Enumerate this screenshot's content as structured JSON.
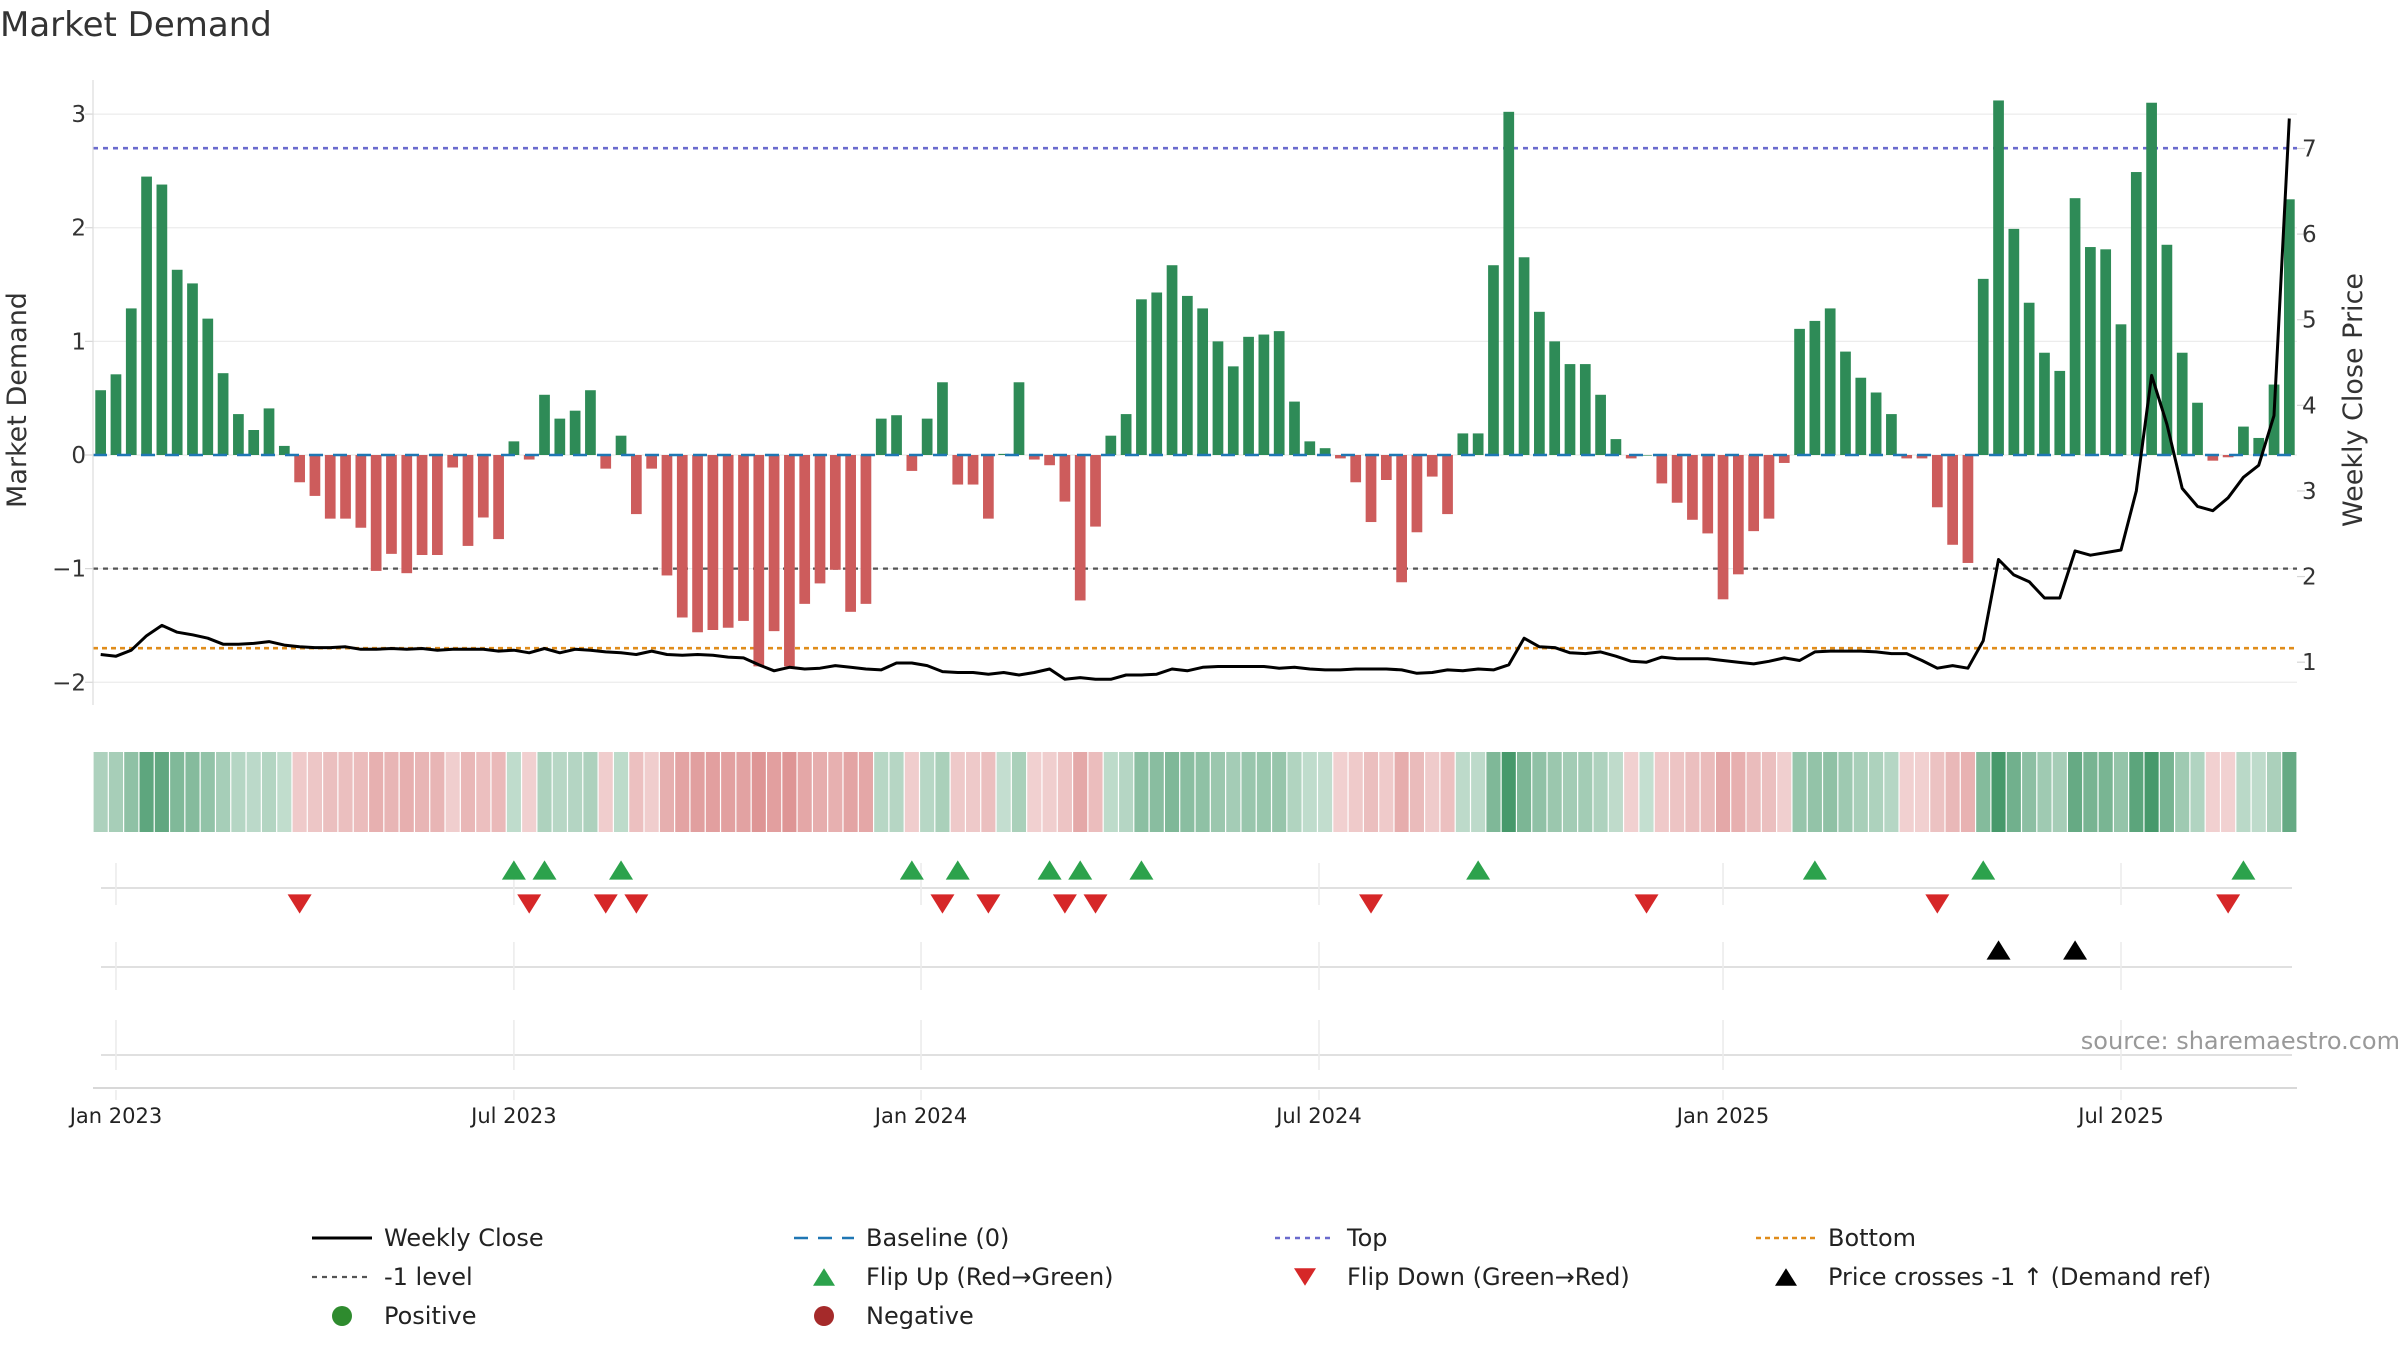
{
  "chart_data": {
    "type": "bar",
    "title": "Market Demand",
    "source": "source: sharemaestro.com",
    "ylabel_left": "Market Demand",
    "ylabel_right": "Weekly Close Price",
    "ylim_left": [
      -2.2,
      3.3
    ],
    "ylim_right": [
      0.5,
      7.8
    ],
    "yticks_left": [
      {
        "v": 3,
        "label": "3"
      },
      {
        "v": 2,
        "label": "2"
      },
      {
        "v": 1,
        "label": "1"
      },
      {
        "v": 0,
        "label": "0"
      },
      {
        "v": -1,
        "label": "−1"
      },
      {
        "v": -2,
        "label": "−2"
      }
    ],
    "yticks_right": [
      {
        "v": 7,
        "label": "7"
      },
      {
        "v": 6,
        "label": "6"
      },
      {
        "v": 5,
        "label": "5"
      },
      {
        "v": 4,
        "label": "4"
      },
      {
        "v": 3,
        "label": "3"
      },
      {
        "v": 2,
        "label": "2"
      },
      {
        "v": 1,
        "label": "1"
      }
    ],
    "xticks": [
      {
        "i": 1,
        "label": "Jan 2023"
      },
      {
        "i": 27,
        "label": "Jul 2023"
      },
      {
        "i": 53.6,
        "label": "Jan 2024"
      },
      {
        "i": 79.6,
        "label": "Jul 2024"
      },
      {
        "i": 106,
        "label": "Jan 2025"
      },
      {
        "i": 132,
        "label": "Jul 2025"
      }
    ],
    "reference_lines": {
      "baseline": 0,
      "top": 2.7,
      "minus_one": -1,
      "bottom": -1.7
    },
    "demand": [
      0.57,
      0.71,
      1.29,
      2.45,
      2.38,
      1.63,
      1.51,
      1.2,
      0.72,
      0.36,
      0.22,
      0.41,
      0.08,
      -0.24,
      -0.36,
      -0.56,
      -0.56,
      -0.64,
      -1.02,
      -0.87,
      -1.04,
      -0.88,
      -0.88,
      -0.11,
      -0.8,
      -0.55,
      -0.74,
      0.12,
      -0.04,
      0.53,
      0.32,
      0.39,
      0.57,
      -0.12,
      0.17,
      -0.52,
      -0.12,
      -1.06,
      -1.43,
      -1.56,
      -1.54,
      -1.52,
      -1.46,
      -1.86,
      -1.55,
      -1.86,
      -1.31,
      -1.13,
      -1.01,
      -1.38,
      -1.31,
      0.32,
      0.35,
      -0.14,
      0.32,
      0.64,
      -0.26,
      -0.26,
      -0.56,
      0.01,
      0.64,
      -0.04,
      -0.09,
      -0.41,
      -1.28,
      -0.63,
      0.17,
      0.36,
      1.37,
      1.43,
      1.67,
      1.4,
      1.29,
      1.0,
      0.78,
      1.04,
      1.06,
      1.09,
      0.47,
      0.12,
      0.06,
      -0.03,
      -0.24,
      -0.59,
      -0.22,
      -1.12,
      -0.68,
      -0.19,
      -0.52,
      0.19,
      0.19,
      1.67,
      3.02,
      1.74,
      1.26,
      1.0,
      0.8,
      0.8,
      0.53,
      0.14,
      -0.03,
      0.0,
      -0.25,
      -0.42,
      -0.57,
      -0.69,
      -1.27,
      -1.05,
      -0.67,
      -0.56,
      -0.07,
      1.11,
      1.18,
      1.29,
      0.91,
      0.68,
      0.55,
      0.36,
      -0.03,
      -0.03,
      -0.46,
      -0.79,
      -0.95,
      1.55,
      3.12,
      1.99,
      1.34,
      0.9,
      0.74,
      2.26,
      1.83,
      1.81,
      1.15,
      2.49,
      3.1,
      1.85,
      0.9,
      0.46,
      -0.05,
      -0.02,
      0.25,
      0.15,
      0.62,
      2.25
    ],
    "weekly_close": [
      1.09,
      1.07,
      1.14,
      1.31,
      1.43,
      1.35,
      1.32,
      1.28,
      1.21,
      1.21,
      1.22,
      1.24,
      1.2,
      1.18,
      1.17,
      1.17,
      1.18,
      1.15,
      1.15,
      1.16,
      1.15,
      1.16,
      1.14,
      1.15,
      1.15,
      1.15,
      1.13,
      1.14,
      1.11,
      1.16,
      1.11,
      1.15,
      1.14,
      1.12,
      1.11,
      1.09,
      1.13,
      1.09,
      1.08,
      1.09,
      1.08,
      1.06,
      1.05,
      0.97,
      0.9,
      0.94,
      0.92,
      0.93,
      0.96,
      0.94,
      0.92,
      0.91,
      0.99,
      0.99,
      0.96,
      0.89,
      0.88,
      0.88,
      0.86,
      0.88,
      0.85,
      0.88,
      0.92,
      0.8,
      0.82,
      0.8,
      0.8,
      0.85,
      0.85,
      0.86,
      0.92,
      0.9,
      0.94,
      0.95,
      0.95,
      0.95,
      0.95,
      0.93,
      0.94,
      0.92,
      0.91,
      0.91,
      0.92,
      0.92,
      0.92,
      0.91,
      0.87,
      0.88,
      0.91,
      0.9,
      0.92,
      0.91,
      0.97,
      1.28,
      1.18,
      1.17,
      1.11,
      1.1,
      1.12,
      1.07,
      1.01,
      1.0,
      1.06,
      1.04,
      1.04,
      1.04,
      1.02,
      1.0,
      0.98,
      1.01,
      1.05,
      1.02,
      1.12,
      1.13,
      1.13,
      1.13,
      1.12,
      1.1,
      1.1,
      1.02,
      0.93,
      0.96,
      0.93,
      1.25,
      2.2,
      2.02,
      1.94,
      1.75,
      1.75,
      2.3,
      2.25,
      2.28,
      2.31,
      3.0,
      4.35,
      3.78,
      3.03,
      2.82,
      2.77,
      2.92,
      3.16,
      3.3,
      3.88,
      7.35
    ]
  },
  "flip_up": [
    27,
    29,
    34,
    53,
    56,
    62,
    64,
    68,
    90,
    112,
    123,
    140
  ],
  "flip_down": [
    13,
    28,
    33,
    35,
    55,
    58,
    63,
    65,
    83,
    101,
    120,
    139
  ],
  "price_crosses": [
    124,
    129
  ],
  "colors": {
    "positive": "#2e8b57",
    "negative": "#cd5c5c",
    "close": "#000000",
    "baseline": "#1f77b4",
    "top": "#6a6acd",
    "bottom": "#e08c1a",
    "minus_one": "#555555",
    "flip_up": "#2ca24c",
    "flip_down": "#d62728",
    "cross": "#000000",
    "positive_dot": "#2e8b2e",
    "negative_dot": "#a52a2a"
  },
  "legend": [
    {
      "key": "close",
      "label": "Weekly Close"
    },
    {
      "key": "baseline",
      "label": "Baseline (0)"
    },
    {
      "key": "top",
      "label": "Top"
    },
    {
      "key": "bottom",
      "label": "Bottom"
    },
    {
      "key": "minus_one",
      "label": "-1 level"
    },
    {
      "key": "flip_up",
      "label": "Flip Up (Red→Green)"
    },
    {
      "key": "flip_down",
      "label": "Flip Down (Green→Red)"
    },
    {
      "key": "cross",
      "label": "Price crosses -1 ↑ (Demand ref)"
    },
    {
      "key": "positive",
      "label": "Positive"
    },
    {
      "key": "negative",
      "label": "Negative"
    }
  ]
}
